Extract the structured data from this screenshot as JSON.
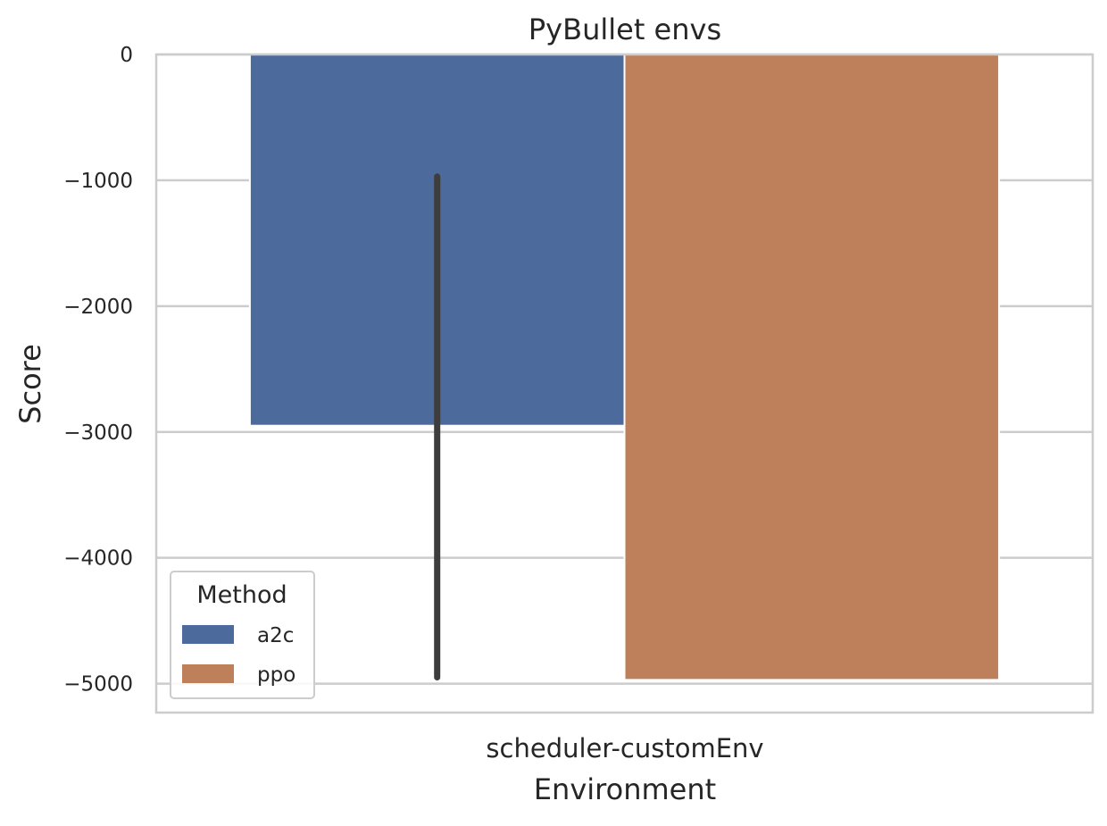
{
  "chart_data": {
    "type": "bar",
    "title": "PyBullet envs",
    "xlabel": "Environment",
    "ylabel": "Score",
    "categories": [
      "scheduler-customEnv"
    ],
    "series": [
      {
        "name": "a2c",
        "color": "#4c6a9c",
        "values": [
          -2950
        ],
        "error": [
          [
            -4950,
            -970
          ]
        ]
      },
      {
        "name": "ppo",
        "color": "#bd805b",
        "values": [
          -4970
        ]
      }
    ],
    "ylim": [
      -5230,
      0
    ],
    "yticks": [
      0,
      -1000,
      -2000,
      -3000,
      -4000,
      -5000
    ],
    "ytick_labels": [
      "0",
      "−1000",
      "−2000",
      "−3000",
      "−4000",
      "−5000"
    ],
    "grid": true,
    "legend": {
      "title": "Method",
      "position": "lower-left"
    }
  }
}
